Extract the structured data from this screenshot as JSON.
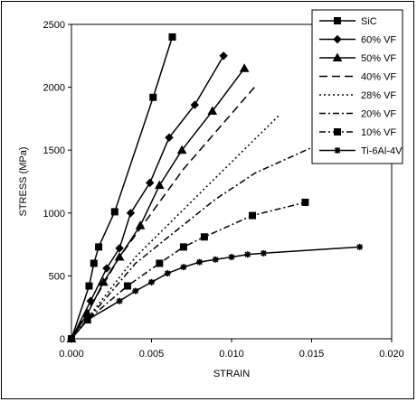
{
  "chart_data": {
    "type": "line",
    "title": "",
    "xlabel": "STRAIN",
    "ylabel": "STRESS (MPa)",
    "xlim": [
      0,
      0.02
    ],
    "ylim": [
      0,
      2500
    ],
    "xticks": [
      "0.000",
      "0.005",
      "0.010",
      "0.015",
      "0.020"
    ],
    "yticks": [
      "0",
      "500",
      "1000",
      "1500",
      "2000",
      "2500"
    ],
    "grid": false,
    "legend_position": "top-right",
    "series": [
      {
        "name": "SiC",
        "color": "#000000",
        "dash": "solid",
        "marker": "square",
        "x": [
          0,
          0.0011,
          0.0014,
          0.0017,
          0.0027,
          0.0051,
          0.0063
        ],
        "y": [
          0,
          420,
          600,
          730,
          1010,
          1920,
          2400
        ]
      },
      {
        "name": "60% VF",
        "color": "#000000",
        "dash": "solid",
        "marker": "diamond",
        "x": [
          0,
          0.0012,
          0.0022,
          0.003,
          0.0037,
          0.0049,
          0.0061,
          0.0077,
          0.0095
        ],
        "y": [
          0,
          300,
          560,
          720,
          1000,
          1240,
          1600,
          1860,
          2250
        ]
      },
      {
        "name": "50% VF",
        "color": "#000000",
        "dash": "solid",
        "marker": "triangle",
        "x": [
          0,
          0.001,
          0.002,
          0.003,
          0.0043,
          0.0055,
          0.0069,
          0.0088,
          0.0108
        ],
        "y": [
          0,
          200,
          450,
          650,
          900,
          1220,
          1500,
          1810,
          2150
        ]
      },
      {
        "name": "40% VF",
        "color": "#000000",
        "dash": "longdash",
        "marker": "none",
        "x": [
          0,
          0.003,
          0.007,
          0.0115
        ],
        "y": [
          0,
          650,
          1350,
          2010
        ]
      },
      {
        "name": "28% VF",
        "color": "#000000",
        "dash": "dot",
        "marker": "none",
        "x": [
          0,
          0.004,
          0.009,
          0.013
        ],
        "y": [
          0,
          650,
          1280,
          1780
        ]
      },
      {
        "name": "20% VF",
        "color": "#000000",
        "dash": "dashdot",
        "marker": "none",
        "x": [
          0,
          0.004,
          0.009,
          0.0115,
          0.015
        ],
        "y": [
          0,
          600,
          1110,
          1320,
          1520
        ]
      },
      {
        "name": "10% VF",
        "color": "#000000",
        "dash": "dashdot",
        "marker": "square",
        "x": [
          0,
          0.001,
          0.0035,
          0.0055,
          0.007,
          0.0083,
          0.0113,
          0.0146
        ],
        "y": [
          0,
          150,
          420,
          600,
          730,
          810,
          980,
          1085
        ]
      },
      {
        "name": "Ti-6Al-4V",
        "color": "#000000",
        "dash": "solid",
        "marker": "star",
        "x": [
          0,
          0.001,
          0.003,
          0.004,
          0.005,
          0.006,
          0.007,
          0.008,
          0.009,
          0.01,
          0.011,
          0.012,
          0.018
        ],
        "y": [
          0,
          150,
          300,
          380,
          450,
          520,
          570,
          610,
          630,
          650,
          670,
          680,
          730
        ]
      }
    ]
  }
}
